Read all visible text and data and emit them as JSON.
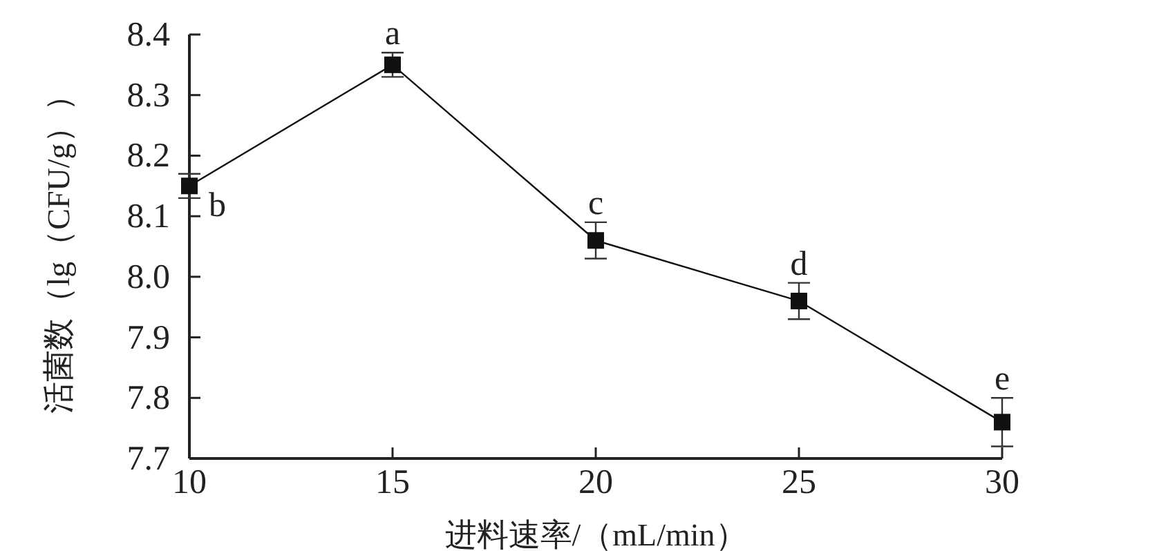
{
  "chart_data": {
    "type": "line",
    "xlabel": "进料速率/（mL/min）",
    "ylabel": "活菌数（lg（CFU/g））",
    "x": [
      10,
      15,
      20,
      25,
      30
    ],
    "series": [
      {
        "color": "#111111",
        "values": [
          8.15,
          8.35,
          8.06,
          7.96,
          7.76
        ],
        "errors": [
          0.02,
          0.02,
          0.03,
          0.03,
          0.04
        ]
      }
    ],
    "xlim": [
      10,
      30
    ],
    "xticks": [
      10,
      15,
      20,
      25,
      30
    ],
    "ylim": [
      7.7,
      8.4
    ],
    "yticks": [
      {
        "value": 7.7,
        "label": "7.7"
      },
      {
        "value": 7.8,
        "label": "7.8"
      },
      {
        "value": 7.9,
        "label": "7.9"
      },
      {
        "value": 8.0,
        "label": "8.0"
      },
      {
        "value": 8.1,
        "label": "8.1"
      },
      {
        "value": 8.2,
        "label": "8.2"
      },
      {
        "value": 8.3,
        "label": "8.3"
      },
      {
        "value": 8.4,
        "label": "8.4"
      }
    ],
    "marker": "square",
    "line_style": "solid",
    "grid": false,
    "annotations": [
      {
        "text": "b",
        "x": 10,
        "y": 8.15
      },
      {
        "text": "a",
        "x": 15,
        "y": 8.35
      },
      {
        "text": "c",
        "x": 20,
        "y": 8.06
      },
      {
        "text": "d",
        "x": 25,
        "y": 7.96
      },
      {
        "text": "e",
        "x": 30,
        "y": 7.76
      }
    ]
  }
}
